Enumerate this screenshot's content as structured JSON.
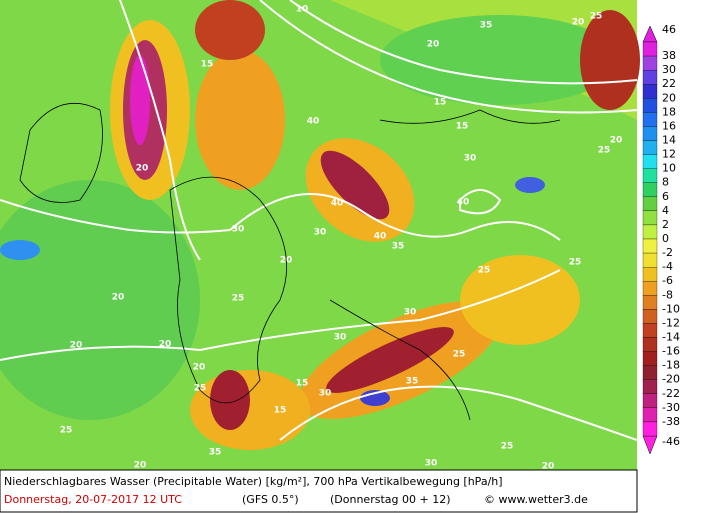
{
  "map": {
    "contour_labels": [
      "10",
      "20",
      "20",
      "35",
      "15",
      "15",
      "15",
      "20",
      "30",
      "25",
      "20",
      "40",
      "40",
      "40",
      "40",
      "30",
      "35",
      "25",
      "30",
      "20",
      "25",
      "20",
      "20",
      "30",
      "35",
      "25",
      "25",
      "20",
      "15",
      "30",
      "25",
      "35",
      "30",
      "30",
      "25",
      "20",
      "15",
      "25",
      "20",
      "20",
      "25"
    ]
  },
  "colorbar": {
    "labels": [
      46,
      38,
      30,
      22,
      20,
      18,
      16,
      14,
      12,
      10,
      8,
      6,
      4,
      2,
      0,
      -2,
      -4,
      -6,
      -8,
      -10,
      -12,
      -14,
      -16,
      -18,
      -20,
      -22,
      -30,
      -38,
      -46
    ],
    "colors": [
      "#e020e0",
      "#a040e0",
      "#6040e0",
      "#3030d0",
      "#2050e0",
      "#2070f0",
      "#2090f0",
      "#20b0f0",
      "#20e0f0",
      "#20e0a0",
      "#30d060",
      "#60d040",
      "#90e040",
      "#c0f040",
      "#f0f040",
      "#f0e030",
      "#f0c020",
      "#f0a020",
      "#e08020",
      "#d06020",
      "#c04020",
      "#b03020",
      "#a02020",
      "#902030",
      "#a02050",
      "#c02080",
      "#e020b0",
      "#ff20e0"
    ]
  },
  "footer": {
    "title": "Niederschlagbares Wasser (Precipitable Water) [kg/m²], 700 hPa Vertikalbewegung [hPa/h]",
    "date": "Donnerstag, 20-07-2017  12 UTC",
    "model": "(GFS 0.5°)",
    "run": "(Donnerstag 00 + 12)",
    "copyright": "© www.wetter3.de"
  }
}
